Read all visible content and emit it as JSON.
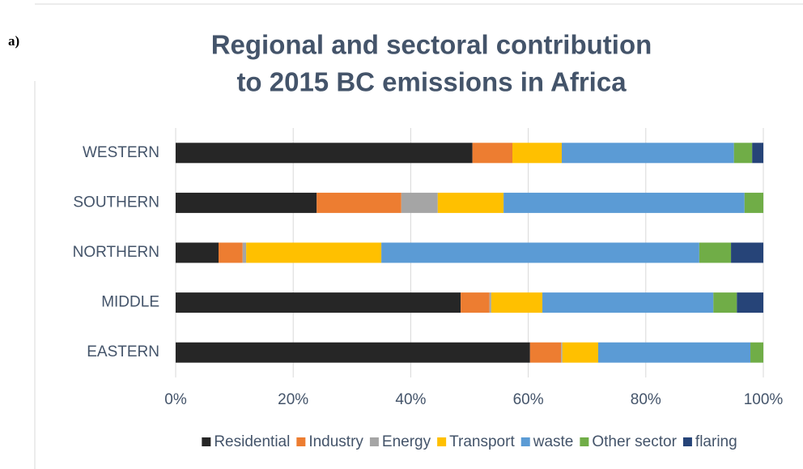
{
  "chart_data": {
    "type": "stacked_bar_horizontal",
    "panel_label": "a)",
    "title_lines": [
      "Regional and sectoral contribution",
      "to 2015 BC emissions in Africa"
    ],
    "categories": [
      "WESTERN",
      "SOUTHERN",
      "NORTHERN",
      "MIDDLE",
      "EASTERN"
    ],
    "series": [
      {
        "name": "Residential",
        "color": "#262626",
        "values": [
          50.5,
          24.0,
          7.3,
          48.5,
          60.3
        ]
      },
      {
        "name": "Industry",
        "color": "#ed7d31",
        "values": [
          6.8,
          14.4,
          4.1,
          4.9,
          5.3
        ]
      },
      {
        "name": "Energy",
        "color": "#a5a5a5",
        "values": [
          0,
          6.2,
          0.6,
          0.3,
          0.2
        ]
      },
      {
        "name": "Transport",
        "color": "#ffc000",
        "values": [
          8.4,
          11.2,
          23.0,
          8.7,
          6.1
        ]
      },
      {
        "name": "waste",
        "color": "#5b9bd5",
        "values": [
          29.3,
          41.0,
          54.1,
          29.1,
          25.9
        ]
      },
      {
        "name": "Other sector",
        "color": "#70ad47",
        "values": [
          3.1,
          3.2,
          5.4,
          4.0,
          2.2
        ]
      },
      {
        "name": "flaring",
        "color": "#264478",
        "values": [
          1.9,
          0,
          5.5,
          4.5,
          0
        ]
      }
    ],
    "xlim": [
      0,
      100
    ],
    "xticks": [
      {
        "value": 0,
        "label": "0%"
      },
      {
        "value": 20,
        "label": "20%"
      },
      {
        "value": 40,
        "label": "40%"
      },
      {
        "value": 60,
        "label": "60%"
      },
      {
        "value": 80,
        "label": "80%"
      },
      {
        "value": 100,
        "label": "100%"
      }
    ],
    "grid": true,
    "legend": "bottom"
  }
}
